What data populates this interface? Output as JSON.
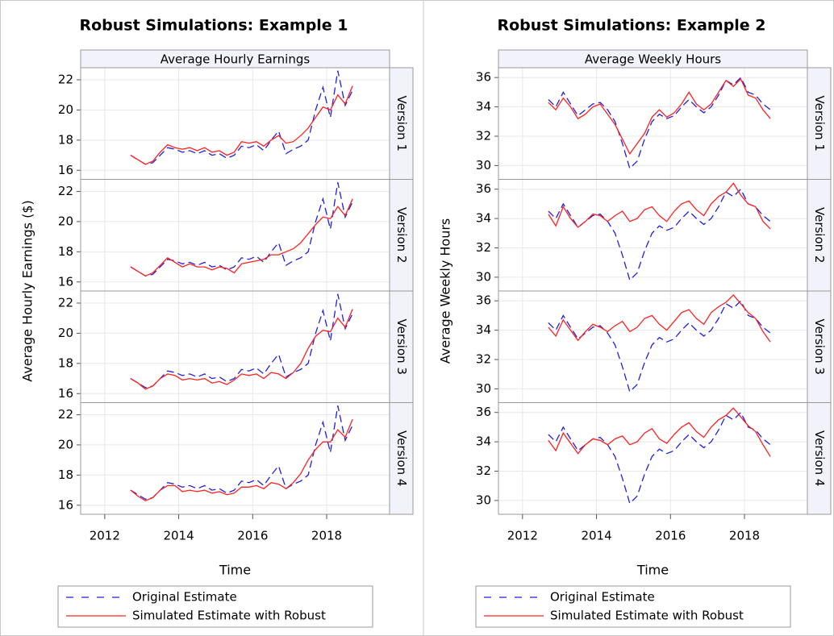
{
  "chart_data": [
    {
      "type": "line",
      "title": "Robust Simulations: Example 1",
      "strip_label": "Average Hourly Earnings",
      "ylabel": "Average Hourly Earnings ($)",
      "xlabel": "Time",
      "grid": true,
      "x": [
        2012.7,
        2012.9,
        2013.1,
        2013.3,
        2013.5,
        2013.7,
        2013.9,
        2014.1,
        2014.3,
        2014.5,
        2014.7,
        2014.9,
        2015.1,
        2015.3,
        2015.5,
        2015.7,
        2015.9,
        2016.1,
        2016.3,
        2016.5,
        2016.7,
        2016.9,
        2017.1,
        2017.3,
        2017.5,
        2017.7,
        2017.9,
        2018.1,
        2018.3,
        2018.5,
        2018.7
      ],
      "xlim": [
        2011.35,
        2019.7
      ],
      "xticks": [
        2012,
        2014,
        2016,
        2018
      ],
      "ylim": [
        15.4,
        22.8
      ],
      "yticks": [
        16,
        18,
        20,
        22
      ],
      "panels": [
        "Version 1",
        "Version 2",
        "Version 3",
        "Version 4"
      ],
      "series": [
        {
          "name": "Original Estimate",
          "color": "#1f1fe0",
          "dash": true,
          "values": [
            17.0,
            16.7,
            16.4,
            16.5,
            17.0,
            17.5,
            17.4,
            17.2,
            17.3,
            17.1,
            17.3,
            17.0,
            17.1,
            16.8,
            17.0,
            17.6,
            17.5,
            17.7,
            17.3,
            18.0,
            18.6,
            17.1,
            17.4,
            17.6,
            18.0,
            20.0,
            21.5,
            19.5,
            22.6,
            20.3,
            21.3
          ]
        },
        {
          "name": "Simulated Estimate with Robust",
          "color": "#ff2020",
          "dash": false,
          "panel_values": [
            [
              17.0,
              16.7,
              16.4,
              16.6,
              17.2,
              17.7,
              17.5,
              17.4,
              17.5,
              17.3,
              17.5,
              17.2,
              17.3,
              17.0,
              17.2,
              17.9,
              17.8,
              17.9,
              17.6,
              18.0,
              18.3,
              17.8,
              17.9,
              18.3,
              18.8,
              19.5,
              20.2,
              20.0,
              21.0,
              20.4,
              21.6
            ],
            [
              17.0,
              16.7,
              16.4,
              16.6,
              17.1,
              17.6,
              17.3,
              17.0,
              17.2,
              17.0,
              17.0,
              16.8,
              17.0,
              16.9,
              16.6,
              17.2,
              17.3,
              17.4,
              17.5,
              17.8,
              17.8,
              18.0,
              18.2,
              18.6,
              19.2,
              19.8,
              20.3,
              20.2,
              21.0,
              20.4,
              21.5
            ],
            [
              17.0,
              16.7,
              16.3,
              16.5,
              17.0,
              17.3,
              17.2,
              16.9,
              17.0,
              16.9,
              17.0,
              16.7,
              16.8,
              16.6,
              16.9,
              17.3,
              17.2,
              17.3,
              17.0,
              17.4,
              17.3,
              17.0,
              17.4,
              18.0,
              19.0,
              19.8,
              20.2,
              20.1,
              21.0,
              20.4,
              21.6
            ],
            [
              17.0,
              16.6,
              16.3,
              16.5,
              17.0,
              17.3,
              17.3,
              16.9,
              17.0,
              16.9,
              17.0,
              16.8,
              16.9,
              16.7,
              16.8,
              17.2,
              17.2,
              17.3,
              17.1,
              17.5,
              17.4,
              17.1,
              17.5,
              18.1,
              19.0,
              19.7,
              20.2,
              20.2,
              21.0,
              20.5,
              21.7
            ]
          ]
        }
      ]
    },
    {
      "type": "line",
      "title": "Robust Simulations: Example 2",
      "strip_label": "Average Weekly Hours",
      "ylabel": "Average Weekly Hours",
      "xlabel": "Time",
      "grid": true,
      "x": [
        2012.7,
        2012.9,
        2013.1,
        2013.3,
        2013.5,
        2013.7,
        2013.9,
        2014.1,
        2014.3,
        2014.5,
        2014.7,
        2014.9,
        2015.1,
        2015.3,
        2015.5,
        2015.7,
        2015.9,
        2016.1,
        2016.3,
        2016.5,
        2016.7,
        2016.9,
        2017.1,
        2017.3,
        2017.5,
        2017.7,
        2017.9,
        2018.1,
        2018.3,
        2018.5,
        2018.7
      ],
      "xlim": [
        2011.35,
        2019.7
      ],
      "xticks": [
        2012,
        2014,
        2016,
        2018
      ],
      "ylim": [
        29.06,
        36.67
      ],
      "yticks": [
        30,
        32,
        34,
        36
      ],
      "panels": [
        "Version 1",
        "Version 2",
        "Version 3",
        "Version 4"
      ],
      "series": [
        {
          "name": "Original Estimate",
          "color": "#1f1fe0",
          "dash": true,
          "values": [
            34.5,
            34.0,
            35.0,
            34.2,
            33.4,
            33.8,
            34.2,
            34.3,
            33.8,
            33.0,
            31.5,
            29.8,
            30.3,
            31.8,
            33.0,
            33.5,
            33.2,
            33.4,
            34.0,
            34.5,
            34.0,
            33.6,
            34.0,
            34.8,
            35.8,
            35.5,
            36.0,
            35.0,
            34.8,
            34.2,
            33.8
          ]
        },
        {
          "name": "Simulated Estimate with Robust",
          "color": "#ff2020",
          "dash": false,
          "panel_values": [
            [
              34.3,
              33.8,
              34.6,
              34.0,
              33.2,
              33.5,
              34.0,
              34.2,
              33.5,
              32.8,
              31.8,
              30.8,
              31.5,
              32.2,
              33.3,
              33.8,
              33.3,
              33.6,
              34.2,
              35.0,
              34.2,
              33.8,
              34.2,
              35.0,
              35.8,
              35.4,
              35.9,
              34.8,
              34.6,
              33.8,
              33.2
            ],
            [
              34.3,
              33.5,
              34.8,
              34.0,
              33.4,
              33.8,
              34.3,
              34.2,
              33.8,
              34.2,
              34.5,
              33.8,
              34.0,
              34.6,
              34.8,
              34.2,
              33.8,
              34.5,
              35.0,
              35.2,
              34.6,
              34.2,
              35.0,
              35.5,
              35.8,
              36.4,
              35.6,
              35.0,
              34.8,
              33.8,
              33.3
            ],
            [
              34.2,
              33.6,
              34.7,
              34.0,
              33.3,
              33.9,
              34.4,
              34.2,
              33.9,
              34.3,
              34.6,
              33.9,
              34.2,
              34.8,
              35.0,
              34.4,
              34.0,
              34.6,
              35.2,
              35.4,
              34.8,
              34.4,
              35.2,
              35.6,
              35.9,
              36.4,
              35.8,
              35.2,
              34.8,
              33.9,
              33.2
            ],
            [
              34.1,
              33.4,
              34.6,
              33.9,
              33.2,
              33.8,
              34.2,
              34.1,
              33.8,
              34.2,
              34.4,
              33.8,
              34.0,
              34.6,
              34.9,
              34.2,
              33.9,
              34.5,
              35.0,
              35.3,
              34.7,
              34.3,
              35.0,
              35.5,
              35.8,
              36.3,
              35.7,
              35.1,
              34.7,
              33.8,
              33.0
            ]
          ]
        }
      ]
    }
  ]
}
